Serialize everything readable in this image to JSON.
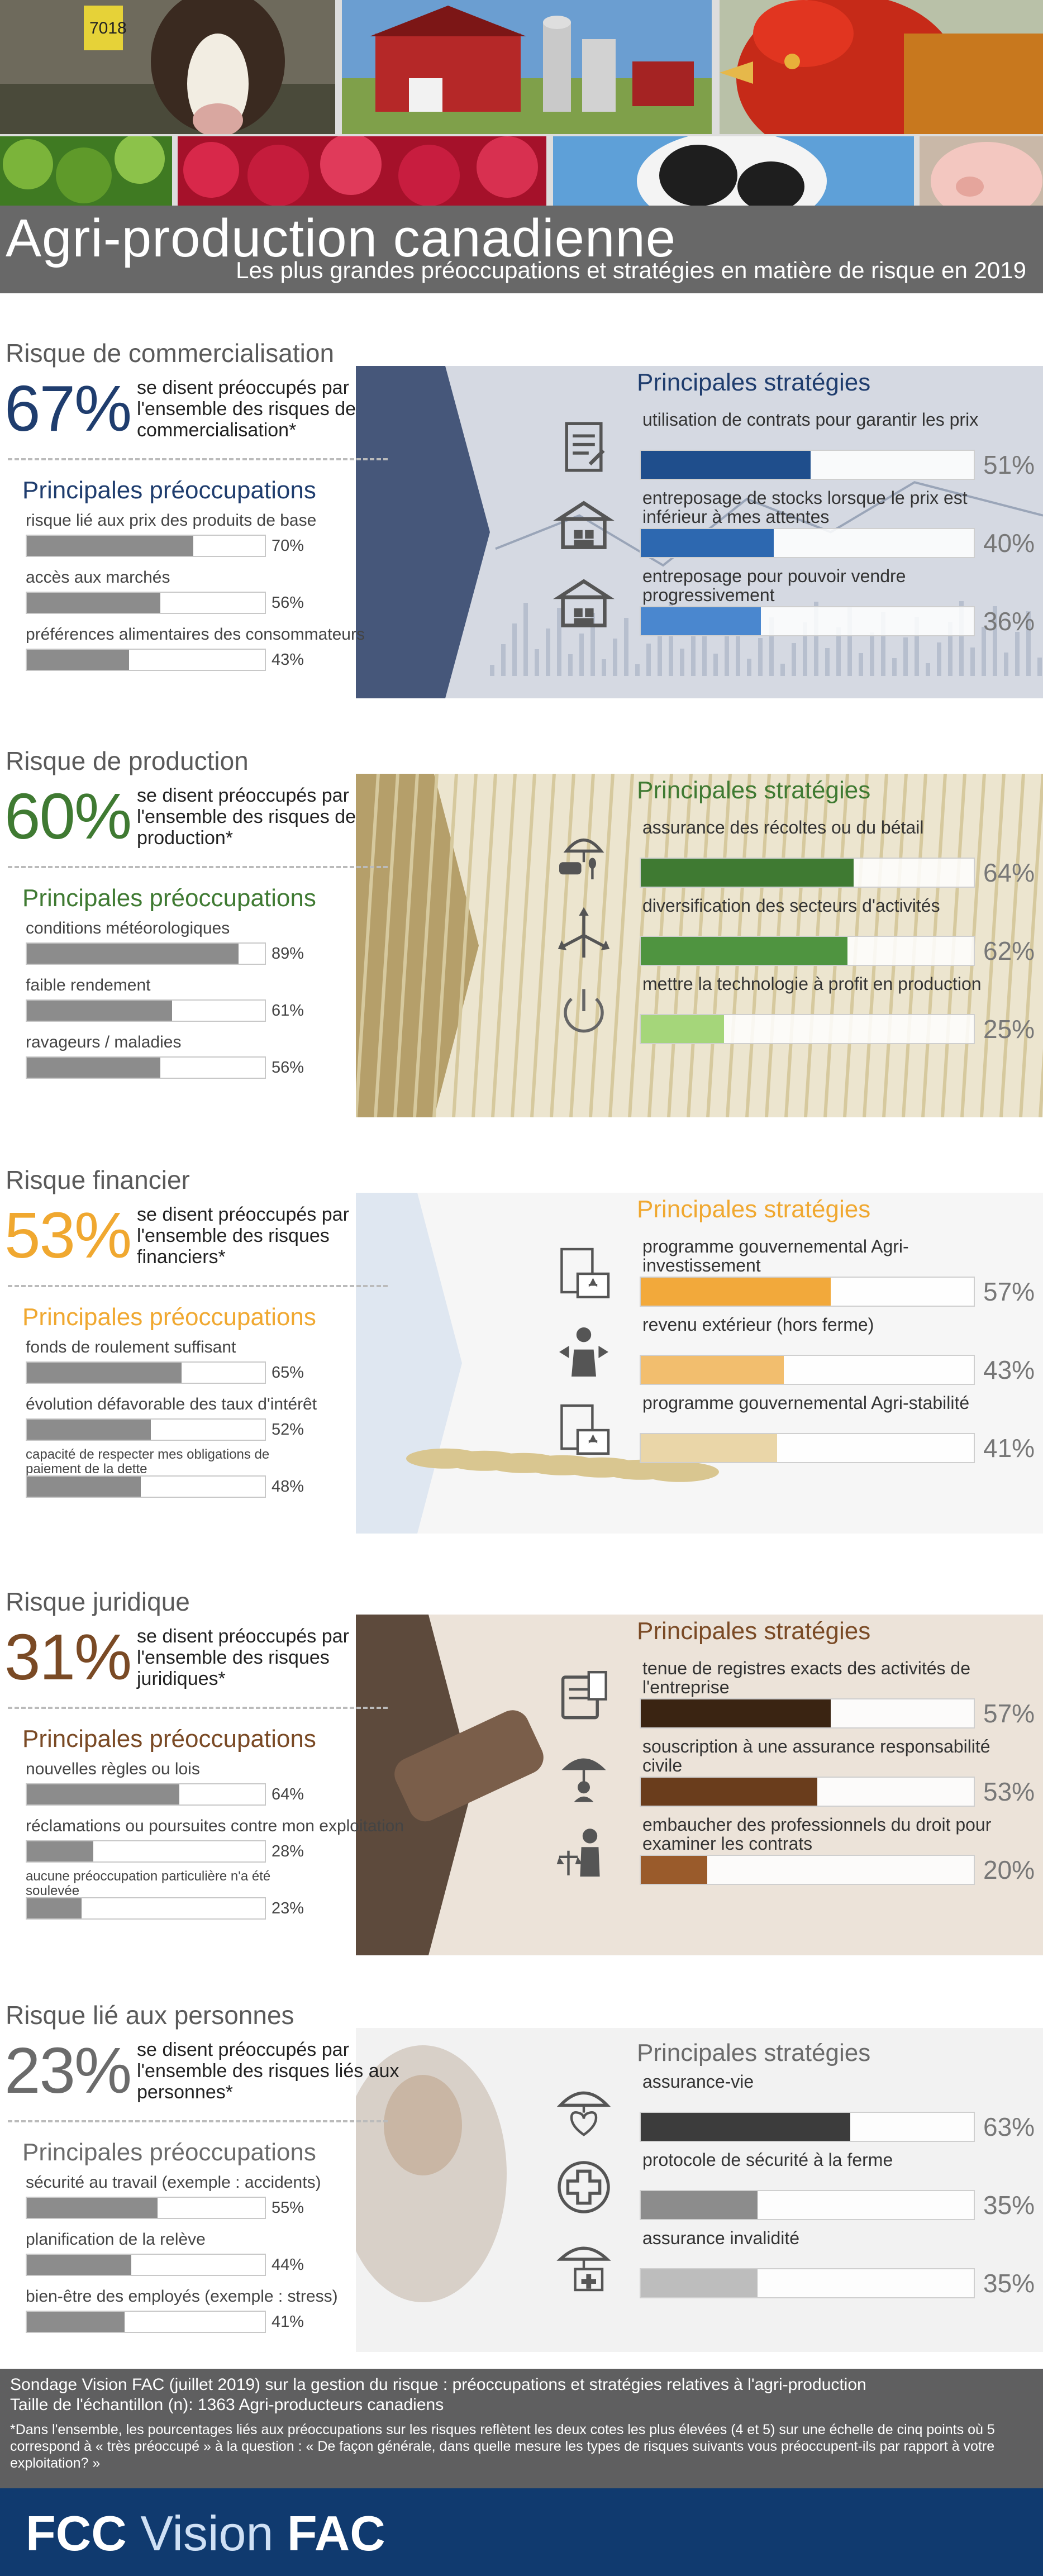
{
  "header": {
    "title": "Agri-production canadienne",
    "subtitle": "Les plus grandes préoccupations et stratégies en matière de risque en 2019",
    "photo_tag": "7018"
  },
  "sections": [
    {
      "id": "commercialisation",
      "title": "Risque de commercialisation",
      "accent": "#1f3d6e",
      "headline_pct": "67%",
      "headline_text": "se disent préoccupés par l'ensemble des risques de commercialisation*",
      "concerns_title": "Principales préoccupations",
      "concerns": [
        {
          "label": "risque lié aux prix des produits de base",
          "pct": "70%",
          "value": 70
        },
        {
          "label": "accès aux marchés",
          "pct": "56%",
          "value": 56
        },
        {
          "label": "préférences alimentaires des consommateurs",
          "pct": "43%",
          "value": 43
        }
      ],
      "strategies_title": "Principales stratégies",
      "strategies": [
        {
          "label": "utilisation de contrats pour garantir les prix",
          "pct": "51%",
          "value": 51,
          "icon": "contract-icon",
          "color": "#1f4e8c"
        },
        {
          "label": "entreposage de stocks lorsque le prix est inférieur à mes attentes",
          "pct": "40%",
          "value": 40,
          "icon": "storage-barn-icon",
          "color": "#2d68b0"
        },
        {
          "label": "entreposage pour pouvoir vendre progressivement",
          "pct": "36%",
          "value": 36,
          "icon": "storage-barn-icon",
          "color": "#4a87cf"
        }
      ]
    },
    {
      "id": "production",
      "title": "Risque de production",
      "accent": "#3f7a32",
      "headline_pct": "60%",
      "headline_text": "se disent préoccupés par l'ensemble des risques de production*",
      "concerns_title": "Principales préoccupations",
      "concerns": [
        {
          "label": "conditions météorologiques",
          "pct": "89%",
          "value": 89
        },
        {
          "label": "faible rendement",
          "pct": "61%",
          "value": 61
        },
        {
          "label": "ravageurs / maladies",
          "pct": "56%",
          "value": 56
        }
      ],
      "strategies_title": "Principales stratégies",
      "strategies": [
        {
          "label": "assurance des récoltes ou du bétail",
          "pct": "64%",
          "value": 64,
          "icon": "crop-insurance-icon",
          "color": "#3f7a32"
        },
        {
          "label": "diversification des secteurs d'activités",
          "pct": "62%",
          "value": 62,
          "icon": "diversification-arrows-icon",
          "color": "#4f9440"
        },
        {
          "label": "mettre la technologie à profit en production",
          "pct": "25%",
          "value": 25,
          "icon": "power-icon",
          "color": "#a5d67a"
        }
      ]
    },
    {
      "id": "financier",
      "title": "Risque financier",
      "accent": "#f0a830",
      "headline_pct": "53%",
      "headline_text": "se disent préoccupés par l'ensemble des risques financiers*",
      "concerns_title": "Principales préoccupations",
      "concerns": [
        {
          "label": "fonds de roulement suffisant",
          "pct": "65%",
          "value": 65
        },
        {
          "label": "évolution défavorable des taux d'intérêt",
          "pct": "52%",
          "value": 52
        },
        {
          "label": "capacité de respecter mes obligations de paiement de la dette",
          "pct": "48%",
          "value": 48,
          "small": true
        }
      ],
      "strategies_title": "Principales stratégies",
      "strategies": [
        {
          "label": "programme gouvernemental Agri-investissement",
          "pct": "57%",
          "value": 57,
          "icon": "government-program-icon",
          "color": "#f2a93b"
        },
        {
          "label": "revenu extérieur (hors ferme)",
          "pct": "43%",
          "value": 43,
          "icon": "off-farm-income-icon",
          "color": "#f2be6e"
        },
        {
          "label": "programme gouvernemental Agri-stabilité",
          "pct": "41%",
          "value": 41,
          "icon": "government-program-icon",
          "color": "#ead6a8"
        }
      ]
    },
    {
      "id": "juridique",
      "title": "Risque juridique",
      "accent": "#7a4a25",
      "headline_pct": "31%",
      "headline_text": "se disent préoccupés par l'ensemble des risques juridiques*",
      "concerns_title": "Principales préoccupations",
      "concerns": [
        {
          "label": "nouvelles règles ou lois",
          "pct": "64%",
          "value": 64
        },
        {
          "label": "réclamations ou poursuites contre mon exploitation",
          "pct": "28%",
          "value": 28
        },
        {
          "label": "aucune préoccupation particulière n'a été soulevée",
          "pct": "23%",
          "value": 23,
          "small": true
        }
      ],
      "strategies_title": "Principales stratégies",
      "strategies": [
        {
          "label": "tenue de registres exacts des activités de l'entreprise",
          "pct": "57%",
          "value": 57,
          "icon": "records-icon",
          "color": "#3a2412"
        },
        {
          "label": "souscription à une assurance responsabilité civile",
          "pct": "53%",
          "value": 53,
          "icon": "liability-insurance-icon",
          "color": "#6a3d1c"
        },
        {
          "label": "embaucher des professionnels du droit pour examiner les contrats",
          "pct": "20%",
          "value": 20,
          "icon": "legal-professional-icon",
          "color": "#9a5b2b"
        }
      ]
    },
    {
      "id": "personnes",
      "title": "Risque lié aux personnes",
      "accent": "#6b6b6b",
      "headline_pct": "23%",
      "headline_text": "se disent préoccupés par l'ensemble des risques liés aux personnes*",
      "concerns_title": "Principales préoccupations",
      "concerns": [
        {
          "label": "sécurité au travail (exemple : accidents)",
          "pct": "55%",
          "value": 55
        },
        {
          "label": "planification de la relève",
          "pct": "44%",
          "value": 44
        },
        {
          "label": "bien-être des employés (exemple : stress)",
          "pct": "41%",
          "value": 41
        }
      ],
      "strategies_title": "Principales stratégies",
      "strategies": [
        {
          "label": "assurance-vie",
          "pct": "63%",
          "value": 63,
          "icon": "life-insurance-icon",
          "color": "#3c3c3c"
        },
        {
          "label": "protocole de sécurité à la ferme",
          "pct": "35%",
          "value": 35,
          "icon": "medical-cross-icon",
          "color": "#8c8c8c"
        },
        {
          "label": "assurance invalidité",
          "pct": "35%",
          "value": 35,
          "icon": "disability-insurance-icon",
          "color": "#bdbdbd"
        }
      ]
    }
  ],
  "footer": {
    "survey": "Sondage Vision FAC (juillet 2019) sur la gestion du risque : préoccupations et stratégies relatives à l'agri-production",
    "sample": "Taille de l'échantillon (n): 1363 Agri-producteurs canadiens",
    "footnote": "*Dans l'ensemble, les pourcentages liés aux préoccupations sur les risques reflètent les deux cotes les plus élevées (4 et 5) sur une échelle de cinq points où 5 correspond à « très préoccupé » à la question : « De façon générale, dans quelle mesure les types de risques suivants vous préoccupent-ils par rapport à votre exploitation? »",
    "brand_fcc": "FCC",
    "brand_vision": "Vision",
    "brand_fac": "FAC"
  }
}
